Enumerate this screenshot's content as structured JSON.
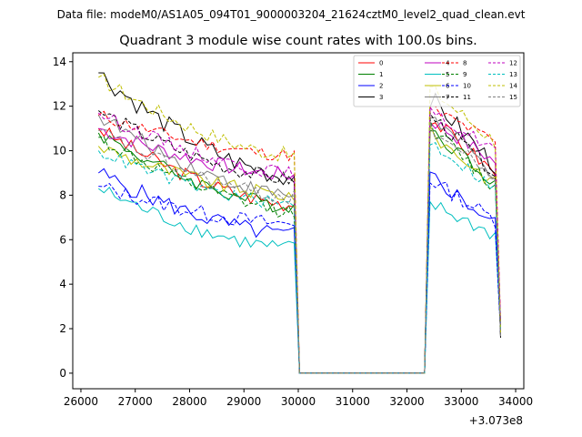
{
  "chart_data": {
    "type": "line",
    "suptitle": "Data file: modeM0/AS1A05_094T01_9000003204_21624cztM0_level2_quad_clean.evt",
    "title": "Quadrant 3 module wise count rates with 100.0s bins.",
    "xlabel": "",
    "ylabel": "",
    "x_offset_label": "+3.073e8",
    "xlim": [
      25850,
      34150
    ],
    "ylim": [
      -0.7,
      14.4
    ],
    "x_ticks": [
      26000,
      27000,
      28000,
      29000,
      30000,
      31000,
      32000,
      33000,
      34000
    ],
    "x_tick_labels": [
      "26000",
      "27000",
      "28000",
      "29000",
      "30000",
      "31000",
      "32000",
      "33000",
      "34000"
    ],
    "y_ticks": [
      0,
      2,
      4,
      6,
      8,
      10,
      12,
      14
    ],
    "y_tick_labels": [
      "0",
      "2",
      "4",
      "6",
      "8",
      "10",
      "12",
      "14"
    ],
    "legend_position": "top-right",
    "segment1": {
      "x_start": 26324,
      "step": 100,
      "count": 37
    },
    "segment2": {
      "x_start": 32324,
      "step": 100,
      "count": 14
    },
    "gap": {
      "x_start": 30024,
      "x_end": 32324,
      "value": 0
    },
    "series": [
      {
        "name": "0",
        "color": "#ff0000",
        "dash": "solid",
        "seg1_start": 11.0,
        "seg1_end": 7.6,
        "seg2_peak": 11.5,
        "seg2_end": 9.0,
        "noise": 0.35
      },
      {
        "name": "1",
        "color": "#008000",
        "dash": "solid",
        "seg1_start": 10.8,
        "seg1_end": 7.5,
        "seg2_peak": 11.0,
        "seg2_end": 8.6,
        "noise": 0.35
      },
      {
        "name": "2",
        "color": "#0000ff",
        "dash": "solid",
        "seg1_start": 9.0,
        "seg1_end": 6.2,
        "seg2_peak": 8.9,
        "seg2_end": 6.7,
        "noise": 0.4
      },
      {
        "name": "3",
        "color": "#000000",
        "dash": "solid",
        "seg1_start": 13.5,
        "seg1_end": 8.8,
        "seg2_peak": 12.4,
        "seg2_end": 9.3,
        "noise": 0.45
      },
      {
        "name": "4",
        "color": "#bf00bf",
        "dash": "solid",
        "seg1_start": 11.0,
        "seg1_end": 8.9,
        "seg2_peak": 11.4,
        "seg2_end": 9.5,
        "noise": 0.35
      },
      {
        "name": "5",
        "color": "#00bfbf",
        "dash": "solid",
        "seg1_start": 8.3,
        "seg1_end": 5.6,
        "seg2_peak": 7.6,
        "seg2_end": 6.2,
        "noise": 0.35
      },
      {
        "name": "6",
        "color": "#bfbf00",
        "dash": "solid",
        "seg1_start": 10.2,
        "seg1_end": 8.0,
        "seg2_peak": 10.8,
        "seg2_end": 8.5,
        "noise": 0.35
      },
      {
        "name": "7",
        "color": "#808080",
        "dash": "solid",
        "seg1_start": 11.6,
        "seg1_end": 8.0,
        "seg2_peak": 11.6,
        "seg2_end": 8.9,
        "noise": 0.35
      },
      {
        "name": "8",
        "color": "#ff0000",
        "dash": "dashed",
        "seg1_start": 11.6,
        "seg1_end": 9.8,
        "seg2_peak": 11.9,
        "seg2_end": 10.4,
        "noise": 0.3
      },
      {
        "name": "9",
        "color": "#008000",
        "dash": "dashed",
        "seg1_start": 10.6,
        "seg1_end": 7.3,
        "seg2_peak": 11.1,
        "seg2_end": 8.3,
        "noise": 0.35
      },
      {
        "name": "10",
        "color": "#0000ff",
        "dash": "dashed",
        "seg1_start": 8.4,
        "seg1_end": 6.7,
        "seg2_peak": 8.7,
        "seg2_end": 6.9,
        "noise": 0.35
      },
      {
        "name": "11",
        "color": "#000000",
        "dash": "dashed",
        "seg1_start": 11.8,
        "seg1_end": 8.7,
        "seg2_peak": 11.6,
        "seg2_end": 9.0,
        "noise": 0.35
      },
      {
        "name": "12",
        "color": "#bf00bf",
        "dash": "dashed",
        "seg1_start": 11.7,
        "seg1_end": 9.0,
        "seg2_peak": 11.7,
        "seg2_end": 10.1,
        "noise": 0.3
      },
      {
        "name": "13",
        "color": "#00bfbf",
        "dash": "dashed",
        "seg1_start": 10.0,
        "seg1_end": 7.6,
        "seg2_peak": 10.4,
        "seg2_end": 8.3,
        "noise": 0.3
      },
      {
        "name": "14",
        "color": "#bfbf00",
        "dash": "dashed",
        "seg1_start": 13.3,
        "seg1_end": 9.8,
        "seg2_peak": 12.8,
        "seg2_end": 10.4,
        "noise": 0.35
      },
      {
        "name": "15",
        "color": "#808080",
        "dash": "dashed",
        "seg1_start": 10.9,
        "seg1_end": 7.9,
        "seg2_peak": 11.0,
        "seg2_end": 8.8,
        "noise": 0.35
      }
    ]
  }
}
